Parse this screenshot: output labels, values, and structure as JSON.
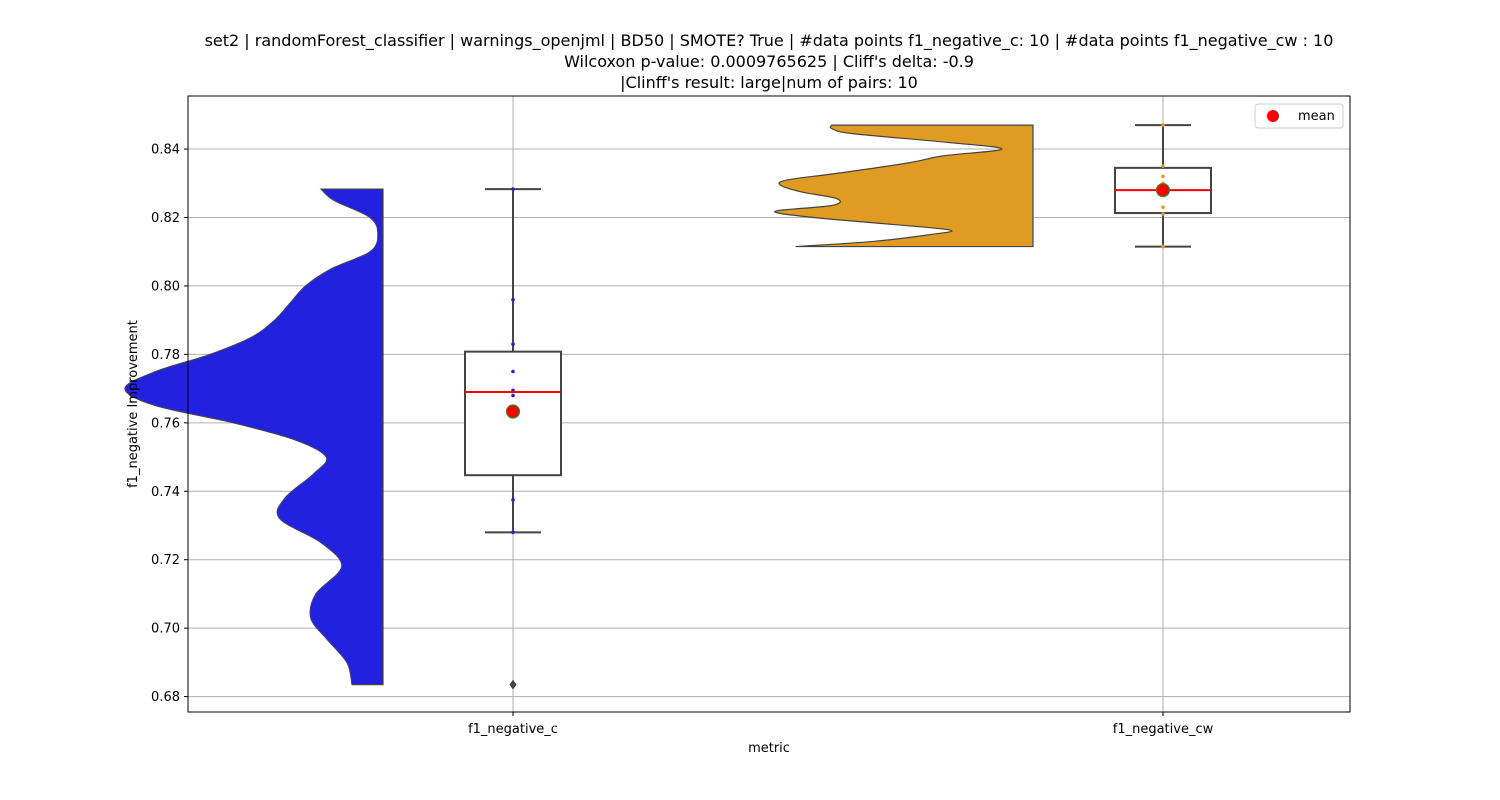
{
  "chart_data": {
    "type": "violin_box",
    "title_lines": [
      "set2 | randomForest_classifier | warnings_openjml | BD50 | SMOTE? True | #data points f1_negative_c: 10 | #data points f1_negative_cw : 10",
      "Wilcoxon p-value: 0.0009765625 | Cliff's delta: -0.9",
      "|Clinff's result: large|num of pairs: 10"
    ],
    "xlabel": "metric",
    "ylabel": "f1_negative Improvement",
    "ylim": [
      0.6755,
      0.8555
    ],
    "yticks": [
      0.68,
      0.7,
      0.72,
      0.74,
      0.76,
      0.78,
      0.8,
      0.82,
      0.84
    ],
    "ytick_labels": [
      "0.68",
      "0.70",
      "0.72",
      "0.74",
      "0.76",
      "0.78",
      "0.80",
      "0.82",
      "0.84"
    ],
    "categories": [
      "f1_negative_c",
      "f1_negative_cw"
    ],
    "grid": true,
    "legend": {
      "placement": "top-right",
      "label": "mean"
    },
    "colors": {
      "f1_negative_c": "#2121df",
      "f1_negative_cw": "#e09c22",
      "median": "#ff0000",
      "mean_fill": "#ff0000",
      "mean_edge": "#2e8b2e",
      "box_edge": "#444444",
      "grid": "#b0b0b0"
    },
    "series": [
      {
        "name": "f1_negative_c",
        "points": [
          0.6835,
          0.728,
          0.7375,
          0.7645,
          0.768,
          0.7695,
          0.775,
          0.783,
          0.796,
          0.8283
        ],
        "box": {
          "q1": 0.7447,
          "median": 0.769,
          "q3": 0.7808,
          "whisker_low": 0.728,
          "whisker_high": 0.8283,
          "mean": 0.7633
        },
        "outliers": [
          0.6835
        ],
        "kde": [
          [
            0.6835,
            0.12
          ],
          [
            0.69,
            0.14
          ],
          [
            0.697,
            0.22
          ],
          [
            0.703,
            0.28
          ],
          [
            0.71,
            0.26
          ],
          [
            0.718,
            0.16
          ],
          [
            0.725,
            0.24
          ],
          [
            0.732,
            0.4
          ],
          [
            0.738,
            0.38
          ],
          [
            0.745,
            0.27
          ],
          [
            0.75,
            0.22
          ],
          [
            0.755,
            0.34
          ],
          [
            0.76,
            0.58
          ],
          [
            0.765,
            0.88
          ],
          [
            0.77,
            1.0
          ],
          [
            0.775,
            0.88
          ],
          [
            0.78,
            0.67
          ],
          [
            0.785,
            0.51
          ],
          [
            0.79,
            0.42
          ],
          [
            0.795,
            0.36
          ],
          [
            0.8,
            0.3
          ],
          [
            0.805,
            0.2
          ],
          [
            0.81,
            0.05
          ],
          [
            0.815,
            0.02
          ],
          [
            0.82,
            0.05
          ],
          [
            0.825,
            0.19
          ],
          [
            0.8283,
            0.24
          ]
        ]
      },
      {
        "name": "f1_negative_cw",
        "points": [
          0.8115,
          0.821,
          0.823,
          0.827,
          0.828,
          0.8285,
          0.83,
          0.832,
          0.835,
          0.847
        ],
        "box": {
          "q1": 0.8213,
          "median": 0.828,
          "q3": 0.8345,
          "whisker_low": 0.8115,
          "whisker_high": 0.847,
          "mean": 0.828
        },
        "outliers": [],
        "kde": [
          [
            0.8115,
            0.92
          ],
          [
            0.813,
            0.62
          ],
          [
            0.815,
            0.4
          ],
          [
            0.8163,
            0.32
          ],
          [
            0.818,
            0.55
          ],
          [
            0.82,
            0.85
          ],
          [
            0.8218,
            1.0
          ],
          [
            0.8235,
            0.78
          ],
          [
            0.8255,
            0.76
          ],
          [
            0.8275,
            0.9
          ],
          [
            0.8295,
            0.98
          ],
          [
            0.831,
            0.95
          ],
          [
            0.833,
            0.75
          ],
          [
            0.836,
            0.48
          ],
          [
            0.838,
            0.35
          ],
          [
            0.84,
            0.12
          ],
          [
            0.842,
            0.34
          ],
          [
            0.8445,
            0.7
          ],
          [
            0.846,
            0.78
          ],
          [
            0.847,
            0.78
          ]
        ]
      }
    ]
  }
}
